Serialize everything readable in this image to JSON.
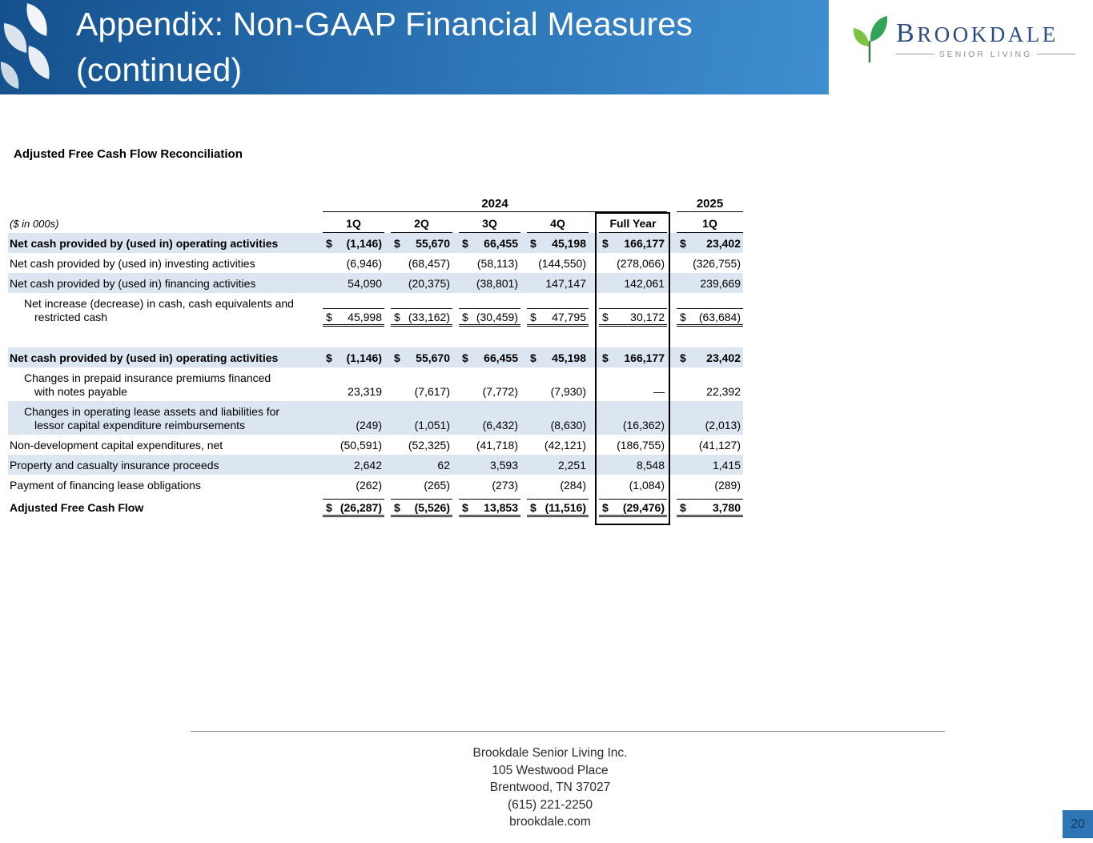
{
  "header": {
    "title_lines": [
      "Appendix: Non-GAAP Financial Measures",
      "(continued)"
    ],
    "logo": {
      "brand": "BROOKDALE",
      "tagline": "SENIOR LIVING"
    }
  },
  "section_title": "Adjusted Free Cash Flow Reconciliation",
  "table": {
    "year_groups": [
      "2024",
      "2025"
    ],
    "units_label": "($ in 000s)",
    "columns": [
      "1Q",
      "2Q",
      "3Q",
      "4Q",
      "Full Year",
      "1Q"
    ],
    "rows": [
      {
        "label": "Net cash provided by (used in) operating activities",
        "bold": true,
        "shaded": true,
        "cells": [
          [
            "$",
            "(1,146)"
          ],
          [
            "$",
            "55,670"
          ],
          [
            "$",
            "66,455"
          ],
          [
            "$",
            "45,198"
          ],
          [
            "$",
            "166,177"
          ],
          [
            "$",
            "23,402"
          ]
        ]
      },
      {
        "label": "Net cash provided by (used in) investing activities",
        "cells": [
          [
            "",
            "(6,946)"
          ],
          [
            "",
            "(68,457)"
          ],
          [
            "",
            "(58,113)"
          ],
          [
            "",
            "(144,550)"
          ],
          [
            "",
            "(278,066)"
          ],
          [
            "",
            "(326,755)"
          ]
        ]
      },
      {
        "label": "Net cash provided by (used in) financing activities",
        "shaded": true,
        "cells": [
          [
            "",
            "54,090"
          ],
          [
            "",
            "(20,375)"
          ],
          [
            "",
            "(38,801)"
          ],
          [
            "",
            "147,147"
          ],
          [
            "",
            "142,061"
          ],
          [
            "",
            "239,669"
          ]
        ]
      },
      {
        "label": "Net increase (decrease) in cash, cash equivalents and\nrestricted cash",
        "indent": true,
        "two_line": true,
        "rules": true,
        "cells": [
          [
            "$",
            "45,998"
          ],
          [
            "$",
            "(33,162)"
          ],
          [
            "$",
            "(30,459)"
          ],
          [
            "$",
            "47,795"
          ],
          [
            "$",
            "30,172"
          ],
          [
            "$",
            "(63,684)"
          ]
        ]
      },
      {
        "spacer": true
      },
      {
        "label": "Net cash provided by (used in) operating activities",
        "bold": true,
        "shaded": true,
        "cells": [
          [
            "$",
            "(1,146)"
          ],
          [
            "$",
            "55,670"
          ],
          [
            "$",
            "66,455"
          ],
          [
            "$",
            "45,198"
          ],
          [
            "$",
            "166,177"
          ],
          [
            "$",
            "23,402"
          ]
        ]
      },
      {
        "label": "Changes in prepaid insurance premiums financed\nwith notes payable",
        "indent": true,
        "two_line": true,
        "cells": [
          [
            "",
            "23,319"
          ],
          [
            "",
            "(7,617)"
          ],
          [
            "",
            "(7,772)"
          ],
          [
            "",
            "(7,930)"
          ],
          [
            "",
            "—"
          ],
          [
            "",
            "22,392"
          ]
        ]
      },
      {
        "label": "Changes in operating lease assets and liabilities for\nlessor capital expenditure reimbursements",
        "indent": true,
        "two_line": true,
        "shaded": true,
        "cells": [
          [
            "",
            "(249)"
          ],
          [
            "",
            "(1,051)"
          ],
          [
            "",
            "(6,432)"
          ],
          [
            "",
            "(8,630)"
          ],
          [
            "",
            "(16,362)"
          ],
          [
            "",
            "(2,013)"
          ]
        ]
      },
      {
        "label": "Non-development capital expenditures, net",
        "cells": [
          [
            "",
            "(50,591)"
          ],
          [
            "",
            "(52,325)"
          ],
          [
            "",
            "(41,718)"
          ],
          [
            "",
            "(42,121)"
          ],
          [
            "",
            "(186,755)"
          ],
          [
            "",
            "(41,127)"
          ]
        ]
      },
      {
        "label": "Property and casualty insurance proceeds",
        "shaded": true,
        "cells": [
          [
            "",
            "2,642"
          ],
          [
            "",
            "62"
          ],
          [
            "",
            "3,593"
          ],
          [
            "",
            "2,251"
          ],
          [
            "",
            "8,548"
          ],
          [
            "",
            "1,415"
          ]
        ]
      },
      {
        "label": "Payment of financing lease obligations",
        "cells": [
          [
            "",
            "(262)"
          ],
          [
            "",
            "(265)"
          ],
          [
            "",
            "(273)"
          ],
          [
            "",
            "(284)"
          ],
          [
            "",
            "(1,084)"
          ],
          [
            "",
            "(289)"
          ]
        ]
      },
      {
        "label": "Adjusted Free Cash Flow",
        "bold": true,
        "rules": true,
        "total": true,
        "cells": [
          [
            "$",
            "(26,287)"
          ],
          [
            "$",
            "(5,526)"
          ],
          [
            "$",
            "13,853"
          ],
          [
            "$",
            "(11,516)"
          ],
          [
            "$",
            "(29,476)"
          ],
          [
            "$",
            "3,780"
          ]
        ]
      }
    ]
  },
  "footer": {
    "lines": [
      "Brookdale Senior Living Inc.",
      "105 Westwood Place",
      "Brentwood, TN 37027",
      "(615) 221-2250",
      "brookdale.com"
    ]
  },
  "page_number": "20",
  "colors": {
    "banner_start": "#14508c",
    "banner_end": "#3f8ed0",
    "row_shade": "#dce6f1",
    "accent_blue": "#2e75b6",
    "logo_blue": "#2b4b82",
    "logo_green_dark": "#33a457",
    "logo_green_light": "#7dc242"
  }
}
